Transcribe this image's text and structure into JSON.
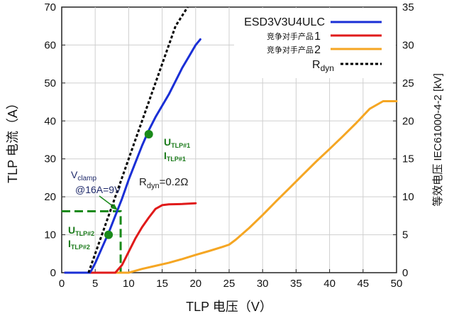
{
  "chart_data": {
    "type": "line",
    "xlabel": "TLP 电压（V）",
    "ylabel": "TLP 电流（A）",
    "y2label": "等效电压 IEC61000-4-2 [kV]",
    "xlim": [
      0,
      50
    ],
    "ylim": [
      0,
      70
    ],
    "y2lim": [
      0,
      35
    ],
    "x_ticks": [
      "0",
      "5",
      "10",
      "15",
      "20",
      "25",
      "30",
      "35",
      "40",
      "45",
      "50"
    ],
    "y_ticks": [
      "0",
      "10",
      "20",
      "30",
      "40",
      "50",
      "60",
      "70"
    ],
    "y2_ticks": [
      "0",
      "5",
      "10",
      "15",
      "20",
      "25",
      "30",
      "35"
    ],
    "grid": true,
    "legend_position": "top-right",
    "legend": [
      {
        "label": "ESD3V3U4ULC",
        "color": "#1a2fd6",
        "style": "solid"
      },
      {
        "label": "竞争对手产品",
        "num": "1",
        "color": "#e01a1a",
        "style": "solid"
      },
      {
        "label": "竞争对手产品",
        "num": "2",
        "color": "#f5a623",
        "style": "solid"
      },
      {
        "label": "R",
        "sub": "dyn",
        "color": "#000000",
        "style": "dashed"
      }
    ],
    "series": [
      {
        "name": "ESD3V3U4ULC",
        "color": "#1a2fd6",
        "x": [
          0.5,
          4.2,
          4.5,
          5.0,
          6.0,
          7.0,
          8.0,
          9.0,
          10.0,
          11.0,
          12.0,
          13.0,
          14.0,
          15.0,
          16.0,
          17.0,
          18.0,
          19.0,
          20.0,
          20.7
        ],
        "y": [
          0,
          0,
          0.8,
          2.5,
          6.5,
          10.5,
          15,
          19.5,
          24.5,
          29,
          33.5,
          37.5,
          41,
          44,
          47,
          50.5,
          54,
          57,
          60,
          61.5
        ]
      },
      {
        "name": "竞争对手产品 1",
        "color": "#e01a1a",
        "x": [
          0.5,
          8.0,
          9.0,
          10.0,
          11.0,
          12.0,
          13.0,
          14.0,
          15.0,
          16.0,
          18.0,
          20.0
        ],
        "y": [
          0,
          0,
          2,
          5.5,
          9,
          12,
          14.5,
          16.8,
          17.8,
          18.0,
          18.1,
          18.3
        ]
      },
      {
        "name": "竞争对手产品 2",
        "color": "#f5a623",
        "x": [
          0.5,
          10.0,
          12.0,
          14.0,
          16.0,
          18.0,
          20.0,
          22.0,
          24.0,
          25.0,
          26.0,
          28.0,
          30.0,
          32.0,
          34.0,
          36.0,
          38.0,
          40.0,
          42.0,
          44.0,
          46.0,
          48.0,
          50.0
        ],
        "y": [
          0,
          0,
          1.0,
          1.8,
          2.6,
          3.6,
          4.7,
          5.7,
          6.8,
          7.4,
          8.7,
          11.8,
          15.2,
          18.8,
          22.3,
          25.8,
          29.3,
          32.6,
          36.0,
          39.5,
          43.2,
          45.2,
          45.2
        ]
      },
      {
        "name": "Rdyn",
        "color": "#000000",
        "style": "dashed",
        "x": [
          4.0,
          5.0,
          7.0,
          9.0,
          11.0,
          13.0,
          15.0,
          17.0,
          18.8
        ],
        "y": [
          0,
          5.0,
          15.0,
          25.0,
          35.0,
          45.0,
          55.0,
          65.0,
          70.0
        ]
      }
    ],
    "points": [
      {
        "name": "TLP#1",
        "x": 13.0,
        "y": 36.5,
        "color": "#1a8a1a"
      },
      {
        "name": "TLP#2",
        "x": 7.0,
        "y": 10.0,
        "color": "#1a8a1a"
      }
    ],
    "clamp_marker": {
      "x": 8.8,
      "y": 16.2
    },
    "annotations": {
      "u1": {
        "main": "U",
        "sub": "TLP#1"
      },
      "i1": {
        "main": "I",
        "sub": "TLP#1"
      },
      "u2": {
        "main": "U",
        "sub": "TLP#2"
      },
      "i2": {
        "main": "I",
        "sub": "TLP#2"
      },
      "vclamp": {
        "main": "V",
        "sub": "clamp"
      },
      "at": "@16A=9V",
      "rdyn": {
        "main": "R",
        "sub": "dyn",
        "tail": "=0.2Ω"
      }
    }
  }
}
